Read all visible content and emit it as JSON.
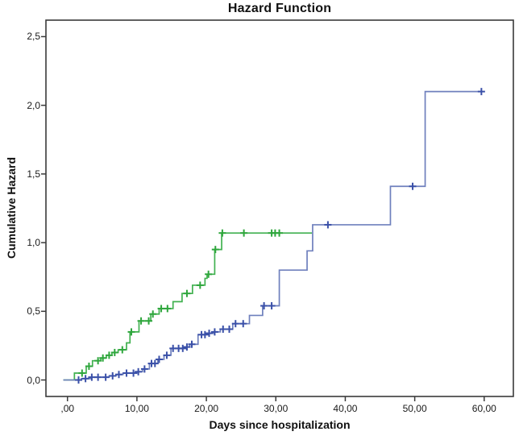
{
  "chart_data": {
    "type": "line",
    "subtype": "step-post-hazard",
    "title": "Hazard Function",
    "xlabel": "Days since hospitalization",
    "ylabel": "Cumulative Hazard",
    "x_tick_labels": [
      ",00",
      "10,00",
      "20,00",
      "30,00",
      "40,00",
      "50,00",
      "60,00"
    ],
    "x_tick_values": [
      0,
      10,
      20,
      30,
      40,
      50,
      60
    ],
    "y_tick_labels": [
      "0,0",
      "0,5",
      "1,0",
      "1,5",
      "2,0",
      "2,5"
    ],
    "y_tick_values": [
      0,
      0.5,
      1.0,
      1.5,
      2.0,
      2.5
    ],
    "xlim": [
      -3.1,
      64.2
    ],
    "ylim": [
      -0.12,
      2.62
    ],
    "grid": false,
    "legend": "none",
    "frame_color": "#3a3a3a",
    "censor_marker": "plus",
    "series": [
      {
        "id": "series-green",
        "color": "#41b150",
        "marker_color": "#2ea63c",
        "steps": [
          [
            -0.6,
            0.0
          ],
          [
            1.0,
            0.05
          ],
          [
            2.7,
            0.1
          ],
          [
            3.6,
            0.14
          ],
          [
            4.8,
            0.16
          ],
          [
            5.6,
            0.18
          ],
          [
            6.4,
            0.2
          ],
          [
            7.3,
            0.22
          ],
          [
            8.5,
            0.27
          ],
          [
            9.0,
            0.35
          ],
          [
            10.3,
            0.43
          ],
          [
            12.0,
            0.48
          ],
          [
            13.2,
            0.52
          ],
          [
            15.2,
            0.57
          ],
          [
            16.5,
            0.63
          ],
          [
            18.0,
            0.69
          ],
          [
            19.8,
            0.74
          ],
          [
            20.1,
            0.77
          ],
          [
            21.2,
            0.95
          ],
          [
            22.2,
            1.07
          ]
        ],
        "end_x": 35.2,
        "censor_marks": [
          [
            2.1,
            0.05
          ],
          [
            3.1,
            0.1
          ],
          [
            4.4,
            0.14
          ],
          [
            5.1,
            0.16
          ],
          [
            6.0,
            0.18
          ],
          [
            6.8,
            0.2
          ],
          [
            7.9,
            0.22
          ],
          [
            9.2,
            0.35
          ],
          [
            10.6,
            0.43
          ],
          [
            11.7,
            0.43
          ],
          [
            12.3,
            0.48
          ],
          [
            13.5,
            0.52
          ],
          [
            14.4,
            0.52
          ],
          [
            17.2,
            0.63
          ],
          [
            19.1,
            0.69
          ],
          [
            20.3,
            0.77
          ],
          [
            21.3,
            0.95
          ],
          [
            22.3,
            1.07
          ],
          [
            25.4,
            1.07
          ],
          [
            29.4,
            1.07
          ],
          [
            29.9,
            1.07
          ],
          [
            30.5,
            1.07
          ]
        ]
      },
      {
        "id": "series-blue",
        "color": "#6f80bd",
        "marker_color": "#3a50a8",
        "steps": [
          [
            -0.6,
            0.0
          ],
          [
            2.0,
            0.01
          ],
          [
            3.3,
            0.02
          ],
          [
            6.0,
            0.03
          ],
          [
            7.0,
            0.04
          ],
          [
            8.0,
            0.05
          ],
          [
            10.0,
            0.06
          ],
          [
            10.8,
            0.08
          ],
          [
            11.8,
            0.12
          ],
          [
            13.0,
            0.15
          ],
          [
            13.9,
            0.18
          ],
          [
            14.9,
            0.23
          ],
          [
            17.0,
            0.24
          ],
          [
            17.6,
            0.26
          ],
          [
            18.8,
            0.33
          ],
          [
            20.0,
            0.34
          ],
          [
            21.0,
            0.35
          ],
          [
            22.0,
            0.37
          ],
          [
            23.8,
            0.41
          ],
          [
            26.2,
            0.47
          ],
          [
            28.1,
            0.54
          ],
          [
            30.5,
            0.8
          ],
          [
            34.5,
            0.94
          ],
          [
            35.3,
            1.13
          ],
          [
            46.5,
            1.41
          ],
          [
            51.5,
            2.1
          ]
        ],
        "end_x": 59.6,
        "censor_marks": [
          [
            1.6,
            0.0
          ],
          [
            2.6,
            0.01
          ],
          [
            3.5,
            0.02
          ],
          [
            4.4,
            0.02
          ],
          [
            5.5,
            0.02
          ],
          [
            6.5,
            0.03
          ],
          [
            7.4,
            0.04
          ],
          [
            8.5,
            0.05
          ],
          [
            9.5,
            0.05
          ],
          [
            10.2,
            0.06
          ],
          [
            11.1,
            0.08
          ],
          [
            12.1,
            0.12
          ],
          [
            12.6,
            0.12
          ],
          [
            13.2,
            0.15
          ],
          [
            14.3,
            0.18
          ],
          [
            15.2,
            0.23
          ],
          [
            16.0,
            0.23
          ],
          [
            16.6,
            0.23
          ],
          [
            17.2,
            0.24
          ],
          [
            17.9,
            0.26
          ],
          [
            19.3,
            0.33
          ],
          [
            19.8,
            0.33
          ],
          [
            20.4,
            0.34
          ],
          [
            21.2,
            0.35
          ],
          [
            22.4,
            0.37
          ],
          [
            23.3,
            0.37
          ],
          [
            24.2,
            0.41
          ],
          [
            25.3,
            0.41
          ],
          [
            28.3,
            0.54
          ],
          [
            29.4,
            0.54
          ],
          [
            37.5,
            1.13
          ],
          [
            49.7,
            1.41
          ],
          [
            59.6,
            2.1
          ]
        ]
      }
    ]
  }
}
